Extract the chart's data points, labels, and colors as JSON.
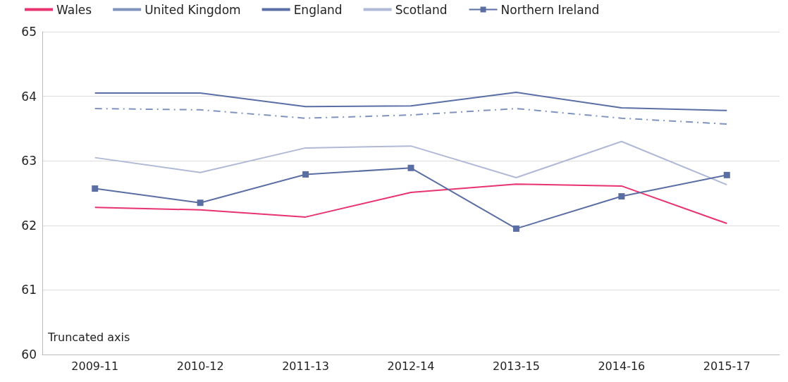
{
  "chart_data": {
    "type": "line",
    "categories": [
      "2009-11",
      "2010-12",
      "2011-13",
      "2012-14",
      "2013-15",
      "2014-16",
      "2015-17"
    ],
    "series": [
      {
        "name": "Wales",
        "color": "#e8336f",
        "marker": "none",
        "line_style": "solid",
        "values": [
          62.28,
          62.24,
          62.13,
          62.51,
          62.64,
          62.61,
          62.03
        ]
      },
      {
        "name": "United Kingdom",
        "color": "#7f93bd",
        "marker": "none",
        "line_style": "dashed",
        "values": [
          63.81,
          63.79,
          63.66,
          63.71,
          63.81,
          63.66,
          63.57
        ]
      },
      {
        "name": "England",
        "color": "#5a6fa6",
        "marker": "none",
        "line_style": "solid",
        "values": [
          64.05,
          64.05,
          63.84,
          63.85,
          64.06,
          63.82,
          63.78
        ]
      },
      {
        "name": "Scotland",
        "color": "#b0b9d6",
        "marker": "none",
        "line_style": "solid",
        "values": [
          63.05,
          62.82,
          63.2,
          63.23,
          62.74,
          63.3,
          62.63
        ]
      },
      {
        "name": "Northern Ireland",
        "color": "#5b6ea3",
        "marker": "square",
        "line_style": "solid",
        "values": [
          62.57,
          62.35,
          62.79,
          62.89,
          61.95,
          62.45,
          62.78
        ]
      }
    ],
    "ylim": [
      60,
      65
    ],
    "yticks": [
      60,
      61,
      62,
      63,
      64,
      65
    ],
    "grid": "y",
    "legend": "top",
    "annotations": [
      "Truncated axis"
    ]
  }
}
